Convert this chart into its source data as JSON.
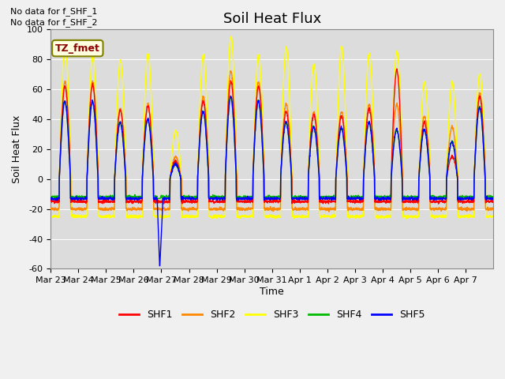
{
  "title": "Soil Heat Flux",
  "ylabel": "Soil Heat Flux",
  "xlabel": "Time",
  "ylim": [
    -60,
    100
  ],
  "annotations": [
    "No data for f_SHF_1",
    "No data for f_SHF_2"
  ],
  "legend_label": "TZ_fmet",
  "series_names": [
    "SHF1",
    "SHF2",
    "SHF3",
    "SHF4",
    "SHF5"
  ],
  "series_colors": [
    "#ff0000",
    "#ff8800",
    "#ffff00",
    "#00bb00",
    "#0000ff"
  ],
  "xtick_labels": [
    "Mar 23",
    "Mar 24",
    "Mar 25",
    "Mar 26",
    "Mar 27",
    "Mar 28",
    "Mar 29",
    "Mar 30",
    "Mar 31",
    "Apr 1",
    "Apr 2",
    "Apr 3",
    "Apr 4",
    "Apr 5",
    "Apr 6",
    "Apr 7"
  ],
  "yticks": [
    -60,
    -40,
    -20,
    0,
    20,
    40,
    60,
    80,
    100
  ],
  "bg_color": "#dcdcdc",
  "fig_color": "#f0f0f0",
  "title_fontsize": 13,
  "axis_fontsize": 9,
  "tick_fontsize": 8
}
